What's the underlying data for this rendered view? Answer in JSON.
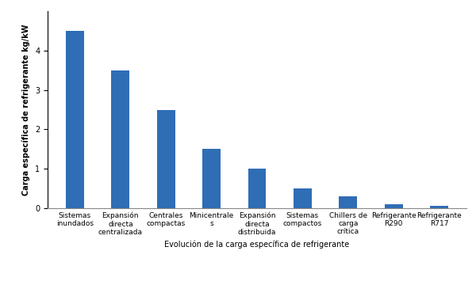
{
  "chart_data": {
    "type": "bar",
    "categories": [
      "Sistemas inundados",
      "Expansión directa centralizada",
      "Centrales compactas",
      "Minicentrales",
      "Expansión directa distribuida",
      "Sistemas compactos",
      "Chillers de carga crítica",
      "Refrigerante R290",
      "Refrigerante R717"
    ],
    "values": [
      4.5,
      3.5,
      2.5,
      1.5,
      1.0,
      0.5,
      0.3,
      0.1,
      0.05
    ],
    "color": "#2f6db5",
    "x_label": "Evolución de la carga específica de refrigerante",
    "y_label": "Carga específica de refrigerante kg/kW",
    "ylim": [
      0,
      5
    ],
    "yticks": [
      0,
      1,
      2,
      3,
      4
    ],
    "grid": false
  }
}
